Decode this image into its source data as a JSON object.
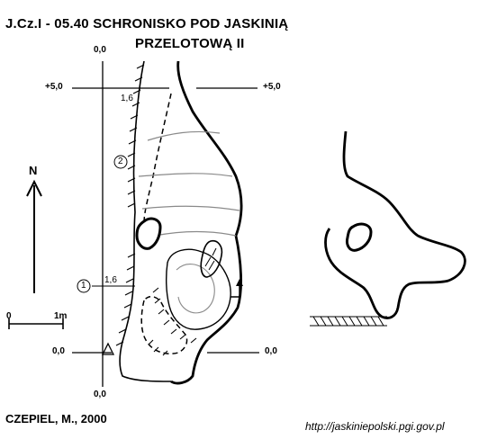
{
  "title": {
    "line1": "J.Cz.I - 05.40  SCHRONISKO POD JASKINIĄ",
    "line2": "PRZELOTOWĄ II"
  },
  "reference_labels": {
    "top": "0,0",
    "bottom": "0,0",
    "left_upper": "+5,0",
    "right_upper": "+5,0",
    "left_lower": "0,0",
    "right_lower": "0,0"
  },
  "depth_labels": {
    "upper": "1,6",
    "lower": "1,6"
  },
  "section_markers": {
    "one": "1",
    "two": "2"
  },
  "north": "N",
  "scale": {
    "start": "0",
    "end": "1m"
  },
  "author": "CZEPIEL, M., 2000",
  "source_url": "http://jaskiniepolski.pgi.gov.pl",
  "icons": [
    "north-arrow-icon",
    "survey-station-triangle-icon",
    "section-direction-arrow-icon"
  ],
  "colors": {
    "ink": "#000000",
    "contour": "#8a8a8a",
    "background": "#ffffff"
  }
}
